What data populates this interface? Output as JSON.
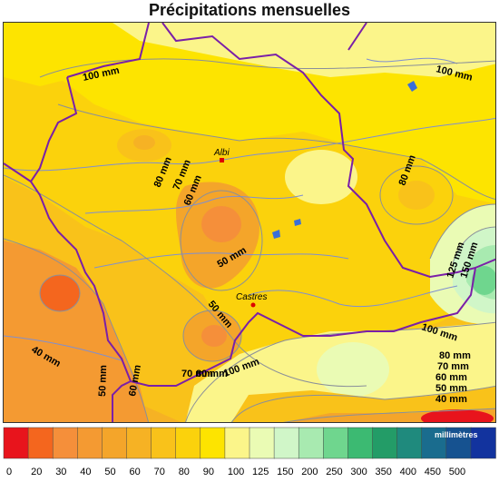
{
  "title": "Précipitations mensuelles",
  "cities": [
    {
      "name": "Albi"
    },
    {
      "name": "Castres"
    }
  ],
  "contour_labels": [
    "100 mm",
    "100 mm",
    "80 mm",
    "70 mm",
    "60 mm",
    "80 mm",
    "50 mm",
    "50 mm",
    "125 mm",
    "150 mm",
    "100 mm",
    "80 mm",
    "70 mm",
    "60 mm",
    "50 mm",
    "40 mm",
    "40 mm",
    "50 mm",
    "60 mm",
    "70 mm",
    "80 mm",
    "100 mm"
  ],
  "legend": {
    "unit": "millimètres",
    "bins": [
      {
        "color": "#e8141c"
      },
      {
        "color": "#f4661e"
      },
      {
        "color": "#f58f3a"
      },
      {
        "color": "#f49a32"
      },
      {
        "color": "#f4a52a"
      },
      {
        "color": "#f6b224"
      },
      {
        "color": "#f9c21a"
      },
      {
        "color": "#fbd20c"
      },
      {
        "color": "#fde400"
      },
      {
        "color": "#fbf58a"
      },
      {
        "color": "#eafbb4"
      },
      {
        "color": "#d0f6c8"
      },
      {
        "color": "#a8eab0"
      },
      {
        "color": "#6fd68e"
      },
      {
        "color": "#3cba72"
      },
      {
        "color": "#239c67"
      },
      {
        "color": "#1f8a7d"
      },
      {
        "color": "#1a6c8e"
      },
      {
        "color": "#165290"
      },
      {
        "color": "#12339e"
      }
    ],
    "ticks": [
      "0",
      "20",
      "30",
      "40",
      "50",
      "60",
      "70",
      "80",
      "90",
      "100",
      "125",
      "150",
      "200",
      "250",
      "300",
      "350",
      "400",
      "450",
      "500"
    ]
  }
}
